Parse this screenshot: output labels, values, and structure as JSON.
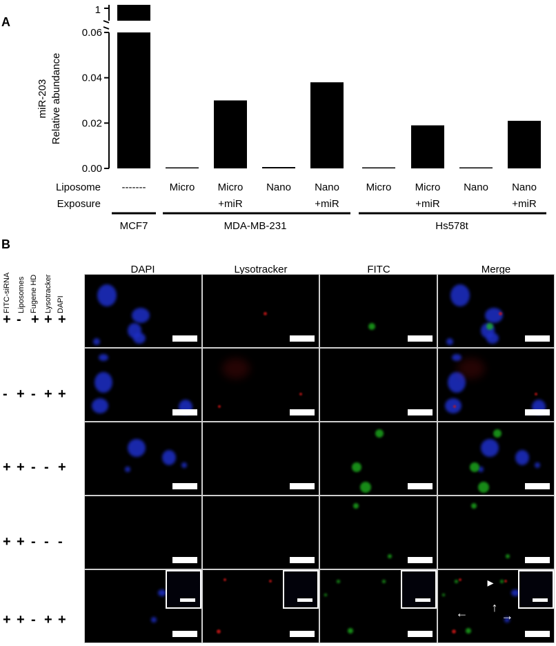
{
  "panel_a": {
    "letter": "A"
  },
  "panel_b": {
    "letter": "B"
  },
  "chart_data": {
    "type": "bar",
    "ylabel_line1": "miR-203",
    "ylabel_line2": "Relative abundance",
    "yticks": [
      "0.00",
      "0.02",
      "0.04",
      "0.06",
      "1"
    ],
    "ylim": [
      0,
      0.06
    ],
    "axis_break": true,
    "categories": [
      "MCF7",
      "MDA-MB-231 Micro",
      "MDA-MB-231 Micro+miR",
      "MDA-MB-231 Nano",
      "MDA-MB-231 Nano+miR",
      "Hs578t Micro",
      "Hs578t Micro+miR",
      "Hs578t Nano",
      "Hs578t Nano+miR"
    ],
    "values": [
      1,
      0.0003,
      0.03,
      0.0006,
      0.038,
      0.0004,
      0.019,
      0.0002,
      0.021
    ],
    "row_labels": [
      "Liposome",
      "Exposure"
    ],
    "exposure_labels": [
      {
        "line1": "-------",
        "line2": ""
      },
      {
        "line1": "Micro",
        "line2": ""
      },
      {
        "line1": "Micro",
        "line2": "+miR"
      },
      {
        "line1": "Nano",
        "line2": ""
      },
      {
        "line1": "Nano",
        "line2": "+miR"
      },
      {
        "line1": "Micro",
        "line2": ""
      },
      {
        "line1": "Micro",
        "line2": "+miR"
      },
      {
        "line1": "Nano",
        "line2": ""
      },
      {
        "line1": "Nano",
        "line2": "+miR"
      }
    ],
    "groups": [
      "MCF7",
      "MDA-MB-231",
      "Hs578t"
    ]
  },
  "microscopy": {
    "columns": [
      "DAPI",
      "Lysotracker",
      "FITC",
      "Merge"
    ],
    "conditions_header": [
      "FITC-siRNA",
      "Liposomes",
      "Fugene HD",
      "Lysotracker",
      "DAPI"
    ],
    "rows": [
      [
        "+",
        "-",
        "+",
        "+",
        "+"
      ],
      [
        "-",
        "+",
        "-",
        "+",
        "+"
      ],
      [
        "+",
        "+",
        "-",
        "-",
        "+"
      ],
      [
        "+",
        "+",
        "-",
        "-",
        "-"
      ],
      [
        "+",
        "+",
        "-",
        "+",
        "+"
      ]
    ]
  },
  "colors": {
    "bar": "#000000",
    "dapi": "#1e2fc8",
    "lyso": "#d01818",
    "fitc": "#1fb81f"
  }
}
